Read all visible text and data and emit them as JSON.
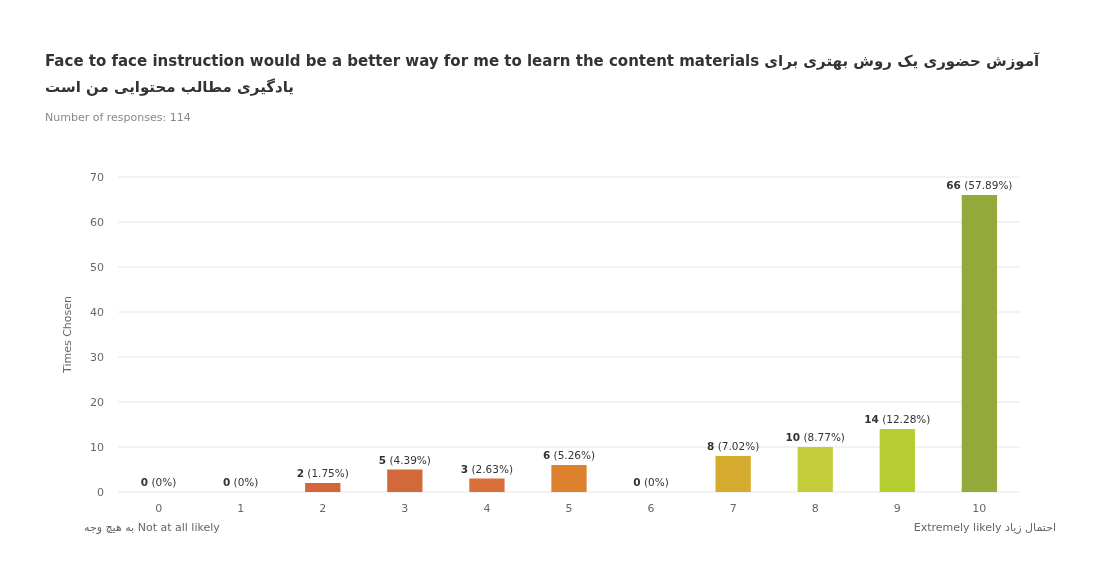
{
  "chart_data": {
    "type": "bar",
    "title": "Face to face instruction would be a better way for me to learn the content materials آموزش حضوری یک روش بهتری برای یادگیری مطالب محتوایی من است",
    "subtitle": "Number of responses: 114",
    "ylabel": "Times Chosen",
    "categories": [
      "0",
      "1",
      "2",
      "3",
      "4",
      "5",
      "6",
      "7",
      "8",
      "9",
      "10"
    ],
    "values": [
      0,
      0,
      2,
      5,
      3,
      6,
      0,
      8,
      10,
      14,
      66
    ],
    "colors": [
      "#c9442e",
      "#cc4f30",
      "#d2653a",
      "#d2693a",
      "#d9703a",
      "#de812e",
      "#e39a2a",
      "#d5ac2e",
      "#c3cd3a",
      "#b5cd31",
      "#93a93a"
    ],
    "value_labels": [
      "0 (0%)",
      "0 (0%)",
      "2 (1.75%)",
      "5 (4.39%)",
      "3 (2.63%)",
      "6 (5.26%)",
      "0 (0%)",
      "8 (7.02%)",
      "10 (8.77%)",
      "14 (12.28%)",
      "66 (57.89%)"
    ],
    "ylim": [
      0,
      70
    ],
    "yticks": [
      0,
      10,
      20,
      30,
      40,
      50,
      60,
      70
    ],
    "grid": "y",
    "annotations": [
      "به هیچ وجه  Not at all likely",
      "Extremely likely  احتمال زیاد"
    ]
  }
}
